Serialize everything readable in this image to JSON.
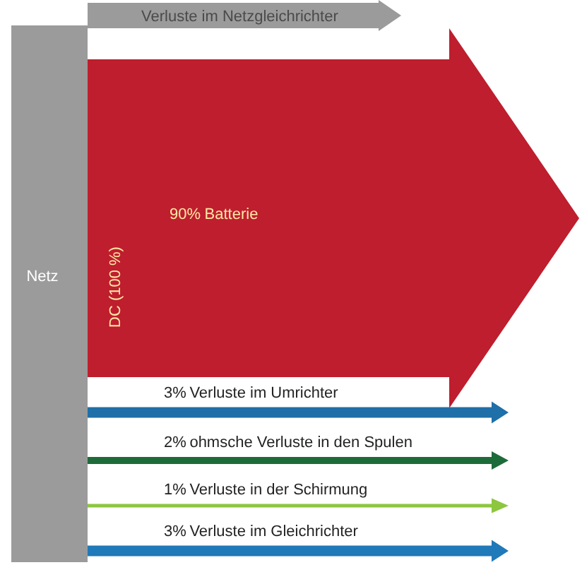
{
  "chart_data": {
    "type": "other",
    "categories": [
      "Batterie",
      "Verluste im Umrichter",
      "ohmsche Verluste in den Spulen",
      "Verluste in der Schirmung",
      "Verluste im Gleichrichter"
    ],
    "values": [
      90,
      3,
      2,
      1,
      3
    ],
    "value_labels": [
      "90%",
      "3%",
      "2%",
      "1%",
      "3%"
    ],
    "colors": [
      "#be1e2d",
      "#1f6fa8",
      "#1e6b3a",
      "#8dc63f",
      "#2079b8"
    ],
    "annotations": [
      "Verluste im Netzgleichrichter",
      "Netz",
      "DC (100 %)"
    ]
  }
}
